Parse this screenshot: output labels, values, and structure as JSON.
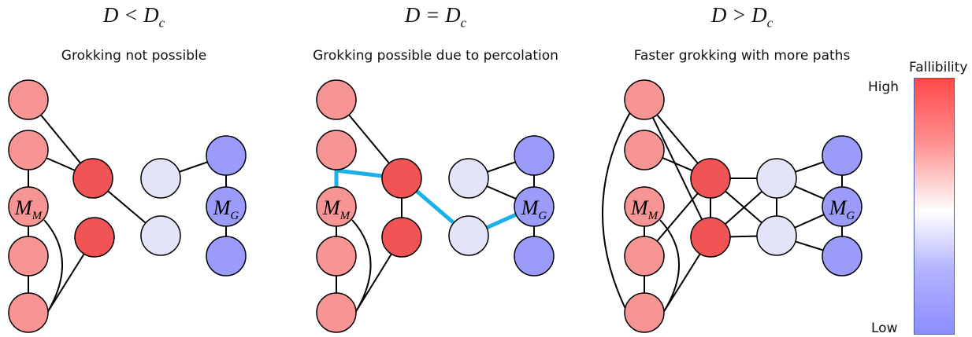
{
  "panels": [
    {
      "math_lhs": "D",
      "math_rhs": "D",
      "math_sub": "c",
      "subtitle": "Grokking not possible"
    },
    {
      "math_lhs": "D",
      "math_rhs": "D",
      "math_sub": "c",
      "subtitle": "Grokking possible due to percolation"
    },
    {
      "math_lhs": "D",
      "math_rhs": "D",
      "math_sub": "c",
      "subtitle": "Faster grokking with more paths"
    }
  ],
  "labels": {
    "mem_sub": "M",
    "gen_sub": "G"
  },
  "legend": {
    "title": "Fallibility",
    "high": "High",
    "low": "Low"
  },
  "colors": {
    "high": "#f05454",
    "memorizing": "#f79595",
    "intermediate": "#e4e4f8",
    "generalizing": "#9b9bfa",
    "percolation_path": "#1ab0e8"
  }
}
